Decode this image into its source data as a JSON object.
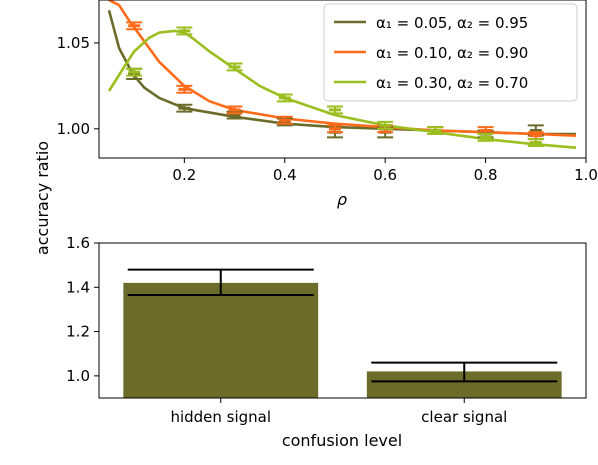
{
  "shared_ylabel": "accuracy ratio",
  "chart_data": [
    {
      "type": "line",
      "xlabel": "ρ",
      "ylabel": "",
      "xlim": [
        0.03,
        1.0
      ],
      "ylim": [
        0.983,
        1.075
      ],
      "xticks": [
        "0.2",
        "0.4",
        "0.6",
        "0.8",
        "1.0"
      ],
      "xtick_values": [
        0.2,
        0.4,
        0.6,
        0.8,
        1.0
      ],
      "yticks": [
        "1.00",
        "1.05"
      ],
      "ytick_values": [
        1.0,
        1.05
      ],
      "grid": false,
      "legend_position": "top-right",
      "series": [
        {
          "name": "α₁ = 0.05, α₂ = 0.95",
          "color": "#6b6b2a",
          "curve_x": [
            0.05,
            0.07,
            0.09,
            0.1,
            0.12,
            0.15,
            0.2,
            0.3,
            0.4,
            0.5,
            0.6,
            0.7,
            0.8,
            0.9,
            0.98
          ],
          "curve_y": [
            1.069,
            1.047,
            1.036,
            1.031,
            1.024,
            1.018,
            1.012,
            1.007,
            1.003,
            1.001,
            1.0,
            0.999,
            0.998,
            0.997,
            0.997
          ],
          "points_x": [
            0.1,
            0.2,
            0.3,
            0.4,
            0.5,
            0.6,
            0.7,
            0.8,
            0.9
          ],
          "points_y": [
            1.032,
            1.012,
            1.008,
            1.004,
            0.998,
            0.998,
            0.999,
            0.997,
            0.999
          ],
          "err": [
            0.003,
            0.002,
            0.002,
            0.002,
            0.003,
            0.003,
            0.002,
            0.002,
            0.003
          ]
        },
        {
          "name": "α₁ = 0.10, α₂ = 0.90",
          "color": "#ff6b1a",
          "curve_x": [
            0.05,
            0.07,
            0.09,
            0.11,
            0.13,
            0.15,
            0.2,
            0.25,
            0.3,
            0.4,
            0.5,
            0.6,
            0.7,
            0.8,
            0.9,
            0.98
          ],
          "curve_y": [
            1.075,
            1.072,
            1.063,
            1.055,
            1.047,
            1.039,
            1.025,
            1.016,
            1.011,
            1.006,
            1.003,
            1.001,
            0.999,
            0.998,
            0.997,
            0.996
          ],
          "points_x": [
            0.1,
            0.2,
            0.3,
            0.4,
            0.5,
            0.6,
            0.7,
            0.8,
            0.9
          ],
          "points_y": [
            1.06,
            1.023,
            1.011,
            1.005,
            1.0,
            1.0,
            0.999,
            0.999,
            0.996
          ],
          "err": [
            0.002,
            0.002,
            0.002,
            0.002,
            0.002,
            0.002,
            0.002,
            0.002,
            0.002
          ]
        },
        {
          "name": "α₁ = 0.30, α₂ = 0.70",
          "color": "#9bbf1f",
          "curve_x": [
            0.05,
            0.08,
            0.1,
            0.13,
            0.15,
            0.18,
            0.2,
            0.22,
            0.25,
            0.3,
            0.35,
            0.4,
            0.5,
            0.6,
            0.7,
            0.8,
            0.9,
            0.98
          ],
          "curve_y": [
            1.022,
            1.036,
            1.045,
            1.053,
            1.056,
            1.057,
            1.056,
            1.052,
            1.045,
            1.035,
            1.025,
            1.018,
            1.008,
            1.002,
            0.998,
            0.994,
            0.991,
            0.989
          ],
          "points_x": [
            0.1,
            0.2,
            0.3,
            0.4,
            0.5,
            0.6,
            0.7,
            0.8,
            0.9
          ],
          "points_y": [
            1.033,
            1.057,
            1.036,
            1.018,
            1.011,
            1.002,
            0.999,
            0.995,
            0.992
          ],
          "err": [
            0.002,
            0.002,
            0.002,
            0.002,
            0.002,
            0.002,
            0.002,
            0.002,
            0.002
          ]
        }
      ]
    },
    {
      "type": "bar",
      "xlabel": "confusion level",
      "ylabel": "",
      "categories": [
        "hidden signal",
        "clear signal"
      ],
      "values": [
        1.42,
        1.02
      ],
      "err_low": [
        1.365,
        0.975
      ],
      "err_high": [
        1.48,
        1.06
      ],
      "bar_color": "#6b6b2a",
      "ylim": [
        0.9,
        1.6
      ],
      "yticks": [
        "1.0",
        "1.2",
        "1.4",
        "1.6"
      ],
      "ytick_values": [
        1.0,
        1.2,
        1.4,
        1.6
      ],
      "grid": false
    }
  ]
}
